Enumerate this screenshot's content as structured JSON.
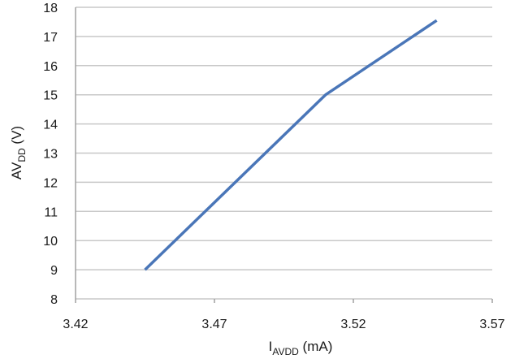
{
  "chart_data": {
    "type": "line",
    "title": "",
    "xlabel": {
      "main": "I",
      "sub": "AVDD",
      "unit": " (mA)"
    },
    "ylabel": {
      "main": "AV",
      "sub": "DD",
      "unit": " (V)"
    },
    "x": [
      3.445,
      3.51,
      3.55
    ],
    "series": [
      {
        "values": [
          9,
          15,
          17.55
        ]
      }
    ],
    "xlim": [
      3.42,
      3.57
    ],
    "ylim": [
      8,
      18
    ],
    "x_ticks": [
      "3.42",
      "3.47",
      "3.52",
      "3.57"
    ],
    "y_ticks": [
      "8",
      "9",
      "10",
      "11",
      "12",
      "13",
      "14",
      "15",
      "16",
      "17",
      "18"
    ],
    "grid": "horizontal",
    "legend": "none",
    "colors": {
      "line": "#4a76b8",
      "grid": "#c8c8c8",
      "axis": "#a0a0a0"
    }
  }
}
